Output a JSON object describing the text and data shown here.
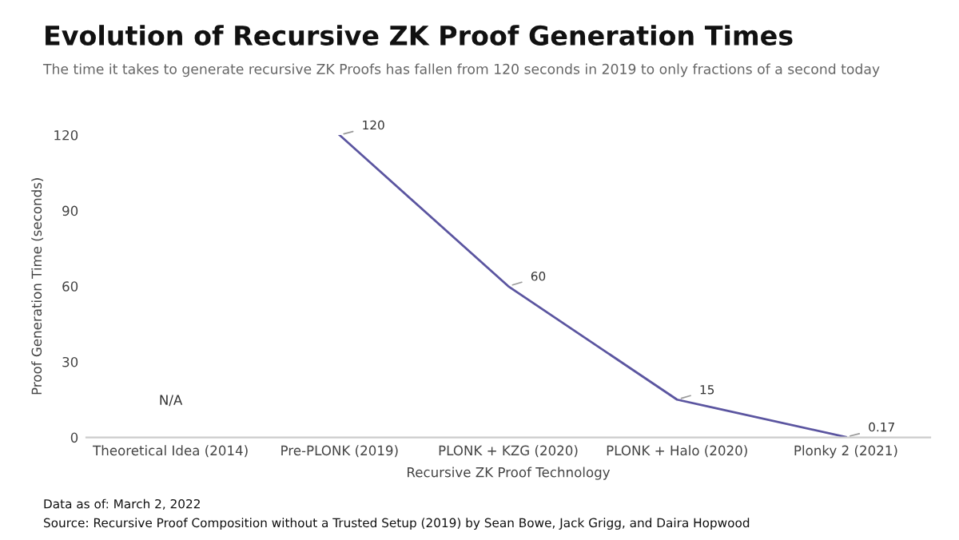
{
  "chart_data": {
    "type": "line",
    "title": "Evolution of Recursive ZK Proof Generation Times",
    "subtitle": "The time it takes to generate recursive ZK Proofs has fallen from 120 seconds in 2019 to only fractions of a second today",
    "xlabel": "Recursive ZK Proof Technology",
    "ylabel": "Proof Generation Time (seconds)",
    "categories": [
      "Theoretical Idea (2014)",
      "Pre-PLONK (2019)",
      "PLONK + KZG (2020)",
      "PLONK + Halo (2020)",
      "Plonky 2 (2021)"
    ],
    "series": [
      {
        "color": "#5b55a0",
        "values": [
          null,
          120,
          60,
          15,
          0.17
        ],
        "value_labels": [
          "N/A",
          "120",
          "60",
          "15",
          "0.17"
        ]
      }
    ],
    "ylim": [
      0,
      120
    ],
    "yticks": [
      0,
      30,
      60,
      90,
      120
    ],
    "grid": false,
    "marker": "none",
    "line_style": "solid",
    "annotations": [
      "Data as of: March 2, 2022",
      "Source: Recursive Proof Composition without a Trusted Setup (2019) by Sean Bowe, Jack Grigg, and Daira Hopwood"
    ]
  }
}
